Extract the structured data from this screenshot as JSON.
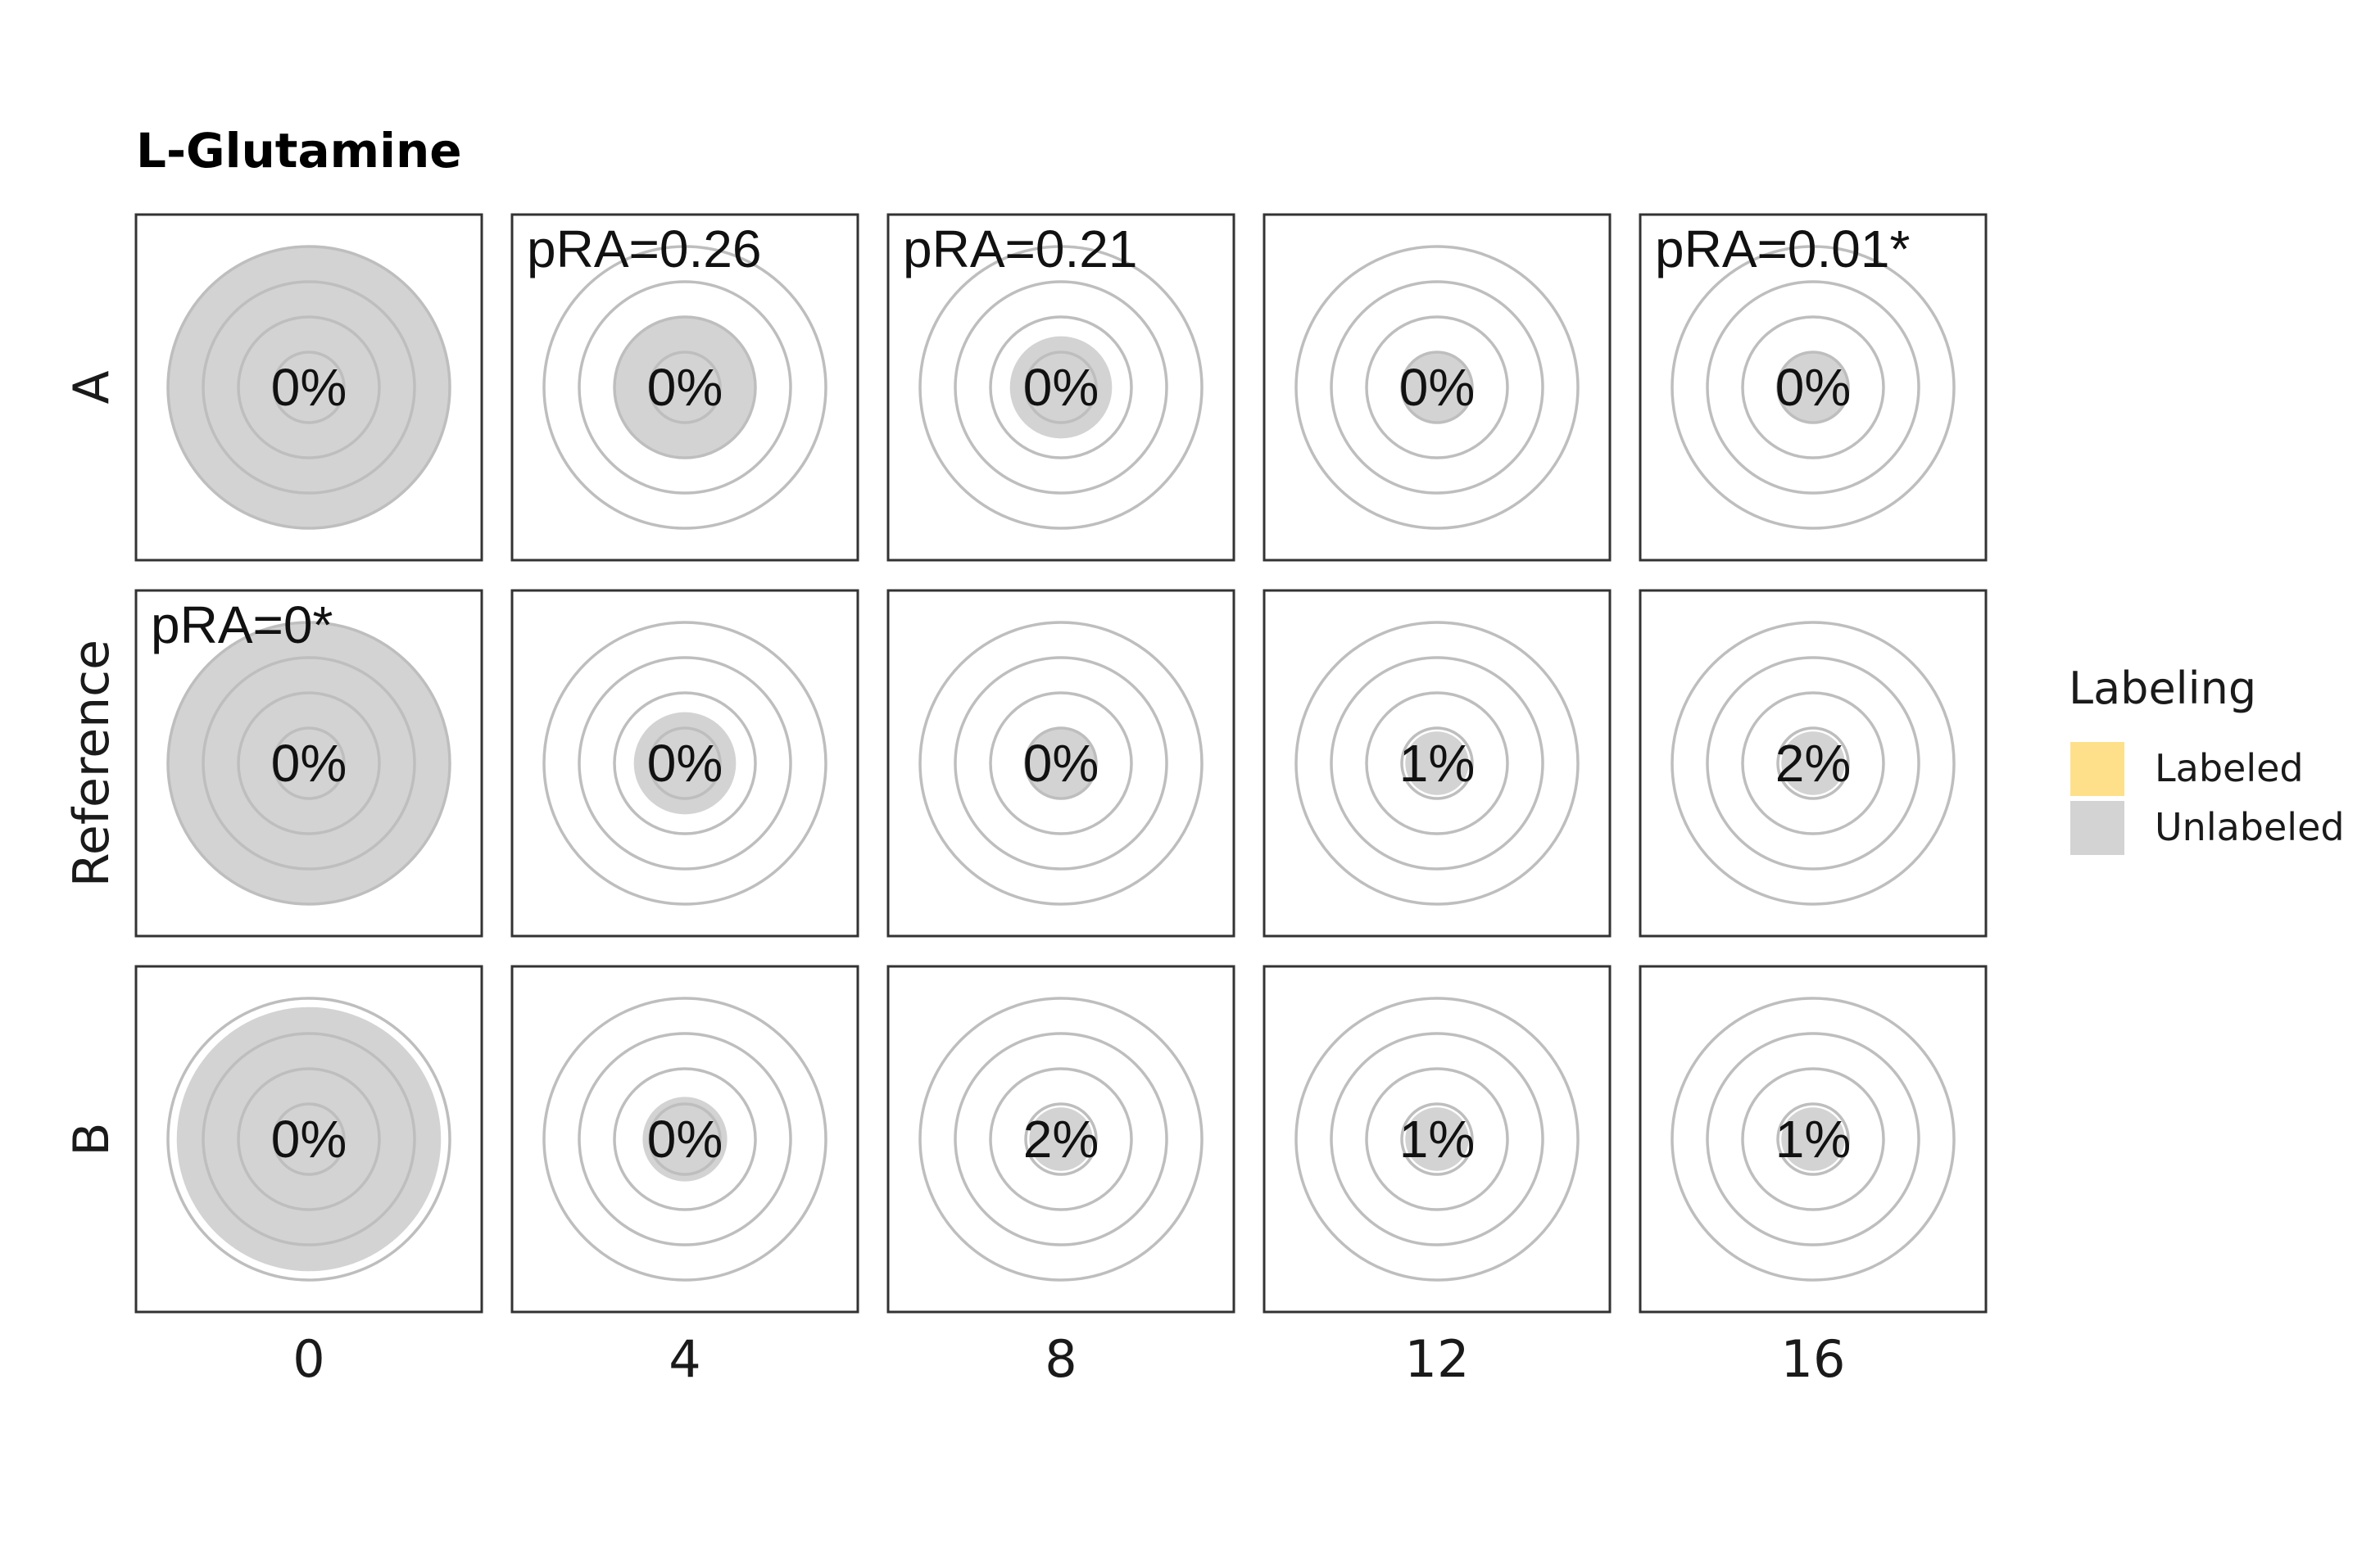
{
  "chart_data": {
    "type": "concentric-ring-grid",
    "title": "L-Glutamine",
    "x_ticks": [
      "0",
      "4",
      "8",
      "12",
      "16"
    ],
    "row_labels": [
      "A",
      "Reference",
      "B"
    ],
    "legend": {
      "title": "Labeling",
      "items": [
        {
          "label": "Labeled",
          "color": "#FFE08A"
        },
        {
          "label": "Unlabeled",
          "color": "#D3D3D3"
        }
      ]
    },
    "ring_color": "#BEBEBE",
    "rings_per_panel": 4,
    "panels": [
      [
        {
          "fill_level": 4.0,
          "percent_label": "0%",
          "pRA": ""
        },
        {
          "fill_level": 2.0,
          "percent_label": "0%",
          "pRA": "pRA=0.26"
        },
        {
          "fill_level": 1.45,
          "percent_label": "0%",
          "pRA": "pRA=0.21"
        },
        {
          "fill_level": 1.0,
          "percent_label": "0%",
          "pRA": ""
        },
        {
          "fill_level": 1.0,
          "percent_label": "0%",
          "pRA": "pRA=0.01*"
        }
      ],
      [
        {
          "fill_level": 4.0,
          "percent_label": "0%",
          "pRA": "pRA=0*"
        },
        {
          "fill_level": 1.45,
          "percent_label": "0%",
          "pRA": ""
        },
        {
          "fill_level": 1.0,
          "percent_label": "0%",
          "pRA": ""
        },
        {
          "fill_level": 0.9,
          "percent_label": "1%",
          "pRA": ""
        },
        {
          "fill_level": 0.9,
          "percent_label": "2%",
          "pRA": ""
        }
      ],
      [
        {
          "fill_level": 3.75,
          "percent_label": "0%",
          "pRA": ""
        },
        {
          "fill_level": 1.2,
          "percent_label": "0%",
          "pRA": ""
        },
        {
          "fill_level": 0.9,
          "percent_label": "2%",
          "pRA": ""
        },
        {
          "fill_level": 0.9,
          "percent_label": "1%",
          "pRA": ""
        },
        {
          "fill_level": 0.9,
          "percent_label": "1%",
          "pRA": ""
        }
      ]
    ]
  }
}
